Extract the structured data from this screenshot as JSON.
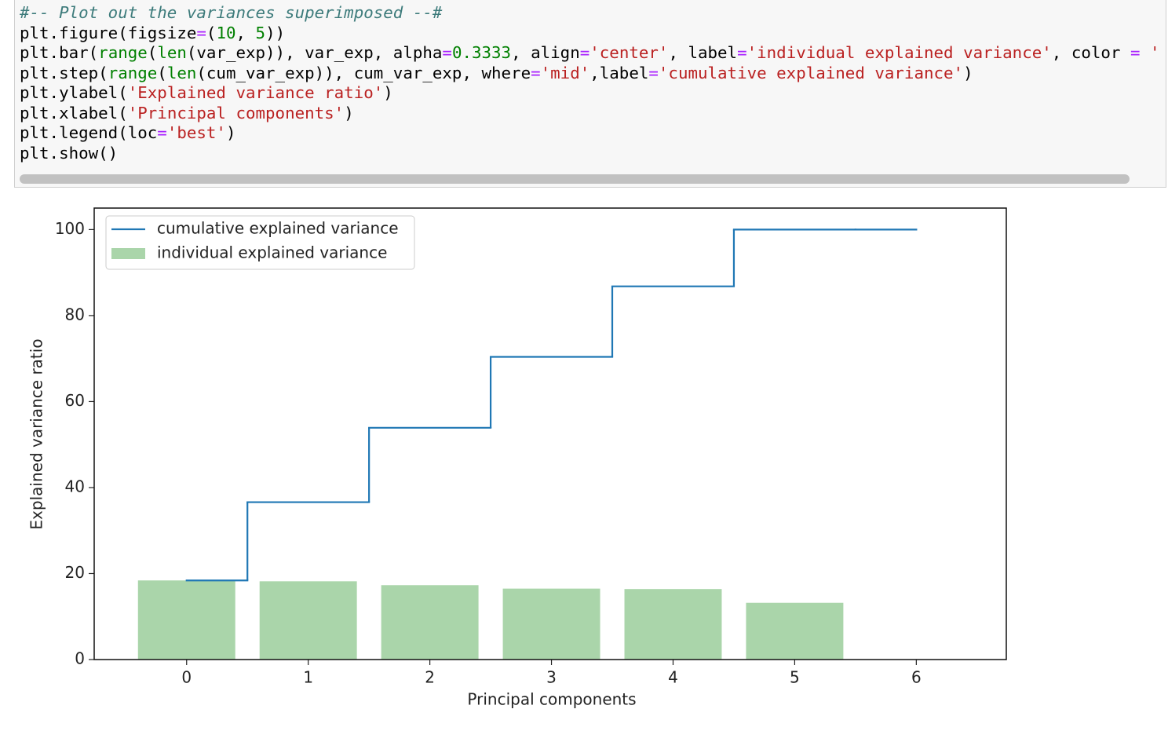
{
  "code": {
    "lines": [
      [
        {
          "text": "#-- Plot out the variances superimposed --#",
          "color": "#3d7b7b",
          "italic": true
        }
      ],
      [
        {
          "text": "plt.figure(figsize"
        },
        {
          "text": "=",
          "color": "#aa22ff"
        },
        {
          "text": "("
        },
        {
          "text": "10",
          "color": "#008000"
        },
        {
          "text": ", "
        },
        {
          "text": "5",
          "color": "#008000"
        },
        {
          "text": "))"
        }
      ],
      [
        {
          "text": "plt.bar("
        },
        {
          "text": "range",
          "color": "#008000"
        },
        {
          "text": "("
        },
        {
          "text": "len",
          "color": "#008000"
        },
        {
          "text": "(var_exp)), var_exp, alpha"
        },
        {
          "text": "=",
          "color": "#aa22ff"
        },
        {
          "text": "0.3333",
          "color": "#008000"
        },
        {
          "text": ", align"
        },
        {
          "text": "=",
          "color": "#aa22ff"
        },
        {
          "text": "'center'",
          "color": "#ba2121"
        },
        {
          "text": ", label"
        },
        {
          "text": "=",
          "color": "#aa22ff"
        },
        {
          "text": "'individual explained variance'",
          "color": "#ba2121"
        },
        {
          "text": ", color "
        },
        {
          "text": "=",
          "color": "#aa22ff"
        },
        {
          "text": " '",
          "color": "#ba2121"
        }
      ],
      [
        {
          "text": "plt.step("
        },
        {
          "text": "range",
          "color": "#008000"
        },
        {
          "text": "("
        },
        {
          "text": "len",
          "color": "#008000"
        },
        {
          "text": "(cum_var_exp)), cum_var_exp, where"
        },
        {
          "text": "=",
          "color": "#aa22ff"
        },
        {
          "text": "'mid'",
          "color": "#ba2121"
        },
        {
          "text": ",label"
        },
        {
          "text": "=",
          "color": "#aa22ff"
        },
        {
          "text": "'cumulative explained variance'",
          "color": "#ba2121"
        },
        {
          "text": ")"
        }
      ],
      [
        {
          "text": "plt.ylabel("
        },
        {
          "text": "'Explained variance ratio'",
          "color": "#ba2121"
        },
        {
          "text": ")"
        }
      ],
      [
        {
          "text": "plt.xlabel("
        },
        {
          "text": "'Principal components'",
          "color": "#ba2121"
        },
        {
          "text": ")"
        }
      ],
      [
        {
          "text": "plt.legend(loc"
        },
        {
          "text": "=",
          "color": "#aa22ff"
        },
        {
          "text": "'best'",
          "color": "#ba2121"
        },
        {
          "text": ")"
        }
      ],
      [
        {
          "text": "plt.show()"
        }
      ]
    ]
  },
  "chart_data": {
    "type": "bar",
    "xlabel": "Principal components",
    "ylabel": "Explained variance ratio",
    "x": [
      0,
      1,
      2,
      3,
      4,
      5,
      6
    ],
    "series": [
      {
        "name": "individual explained variance",
        "type": "bar",
        "color": "#008000",
        "alpha": 0.3333,
        "values": [
          18.4,
          18.2,
          17.3,
          16.5,
          16.4,
          13.2,
          0
        ]
      },
      {
        "name": "cumulative explained variance",
        "type": "step",
        "color": "#1f77b4",
        "values": [
          18.4,
          36.6,
          53.9,
          70.4,
          86.8,
          100,
          100
        ]
      }
    ],
    "xlim": [
      -0.76,
      6.74
    ],
    "xticks": [
      0,
      1,
      2,
      3,
      4,
      5,
      6
    ],
    "ylim": [
      0,
      105
    ],
    "yticks": [
      0,
      20,
      40,
      60,
      80,
      100
    ],
    "legend": "upper left"
  }
}
